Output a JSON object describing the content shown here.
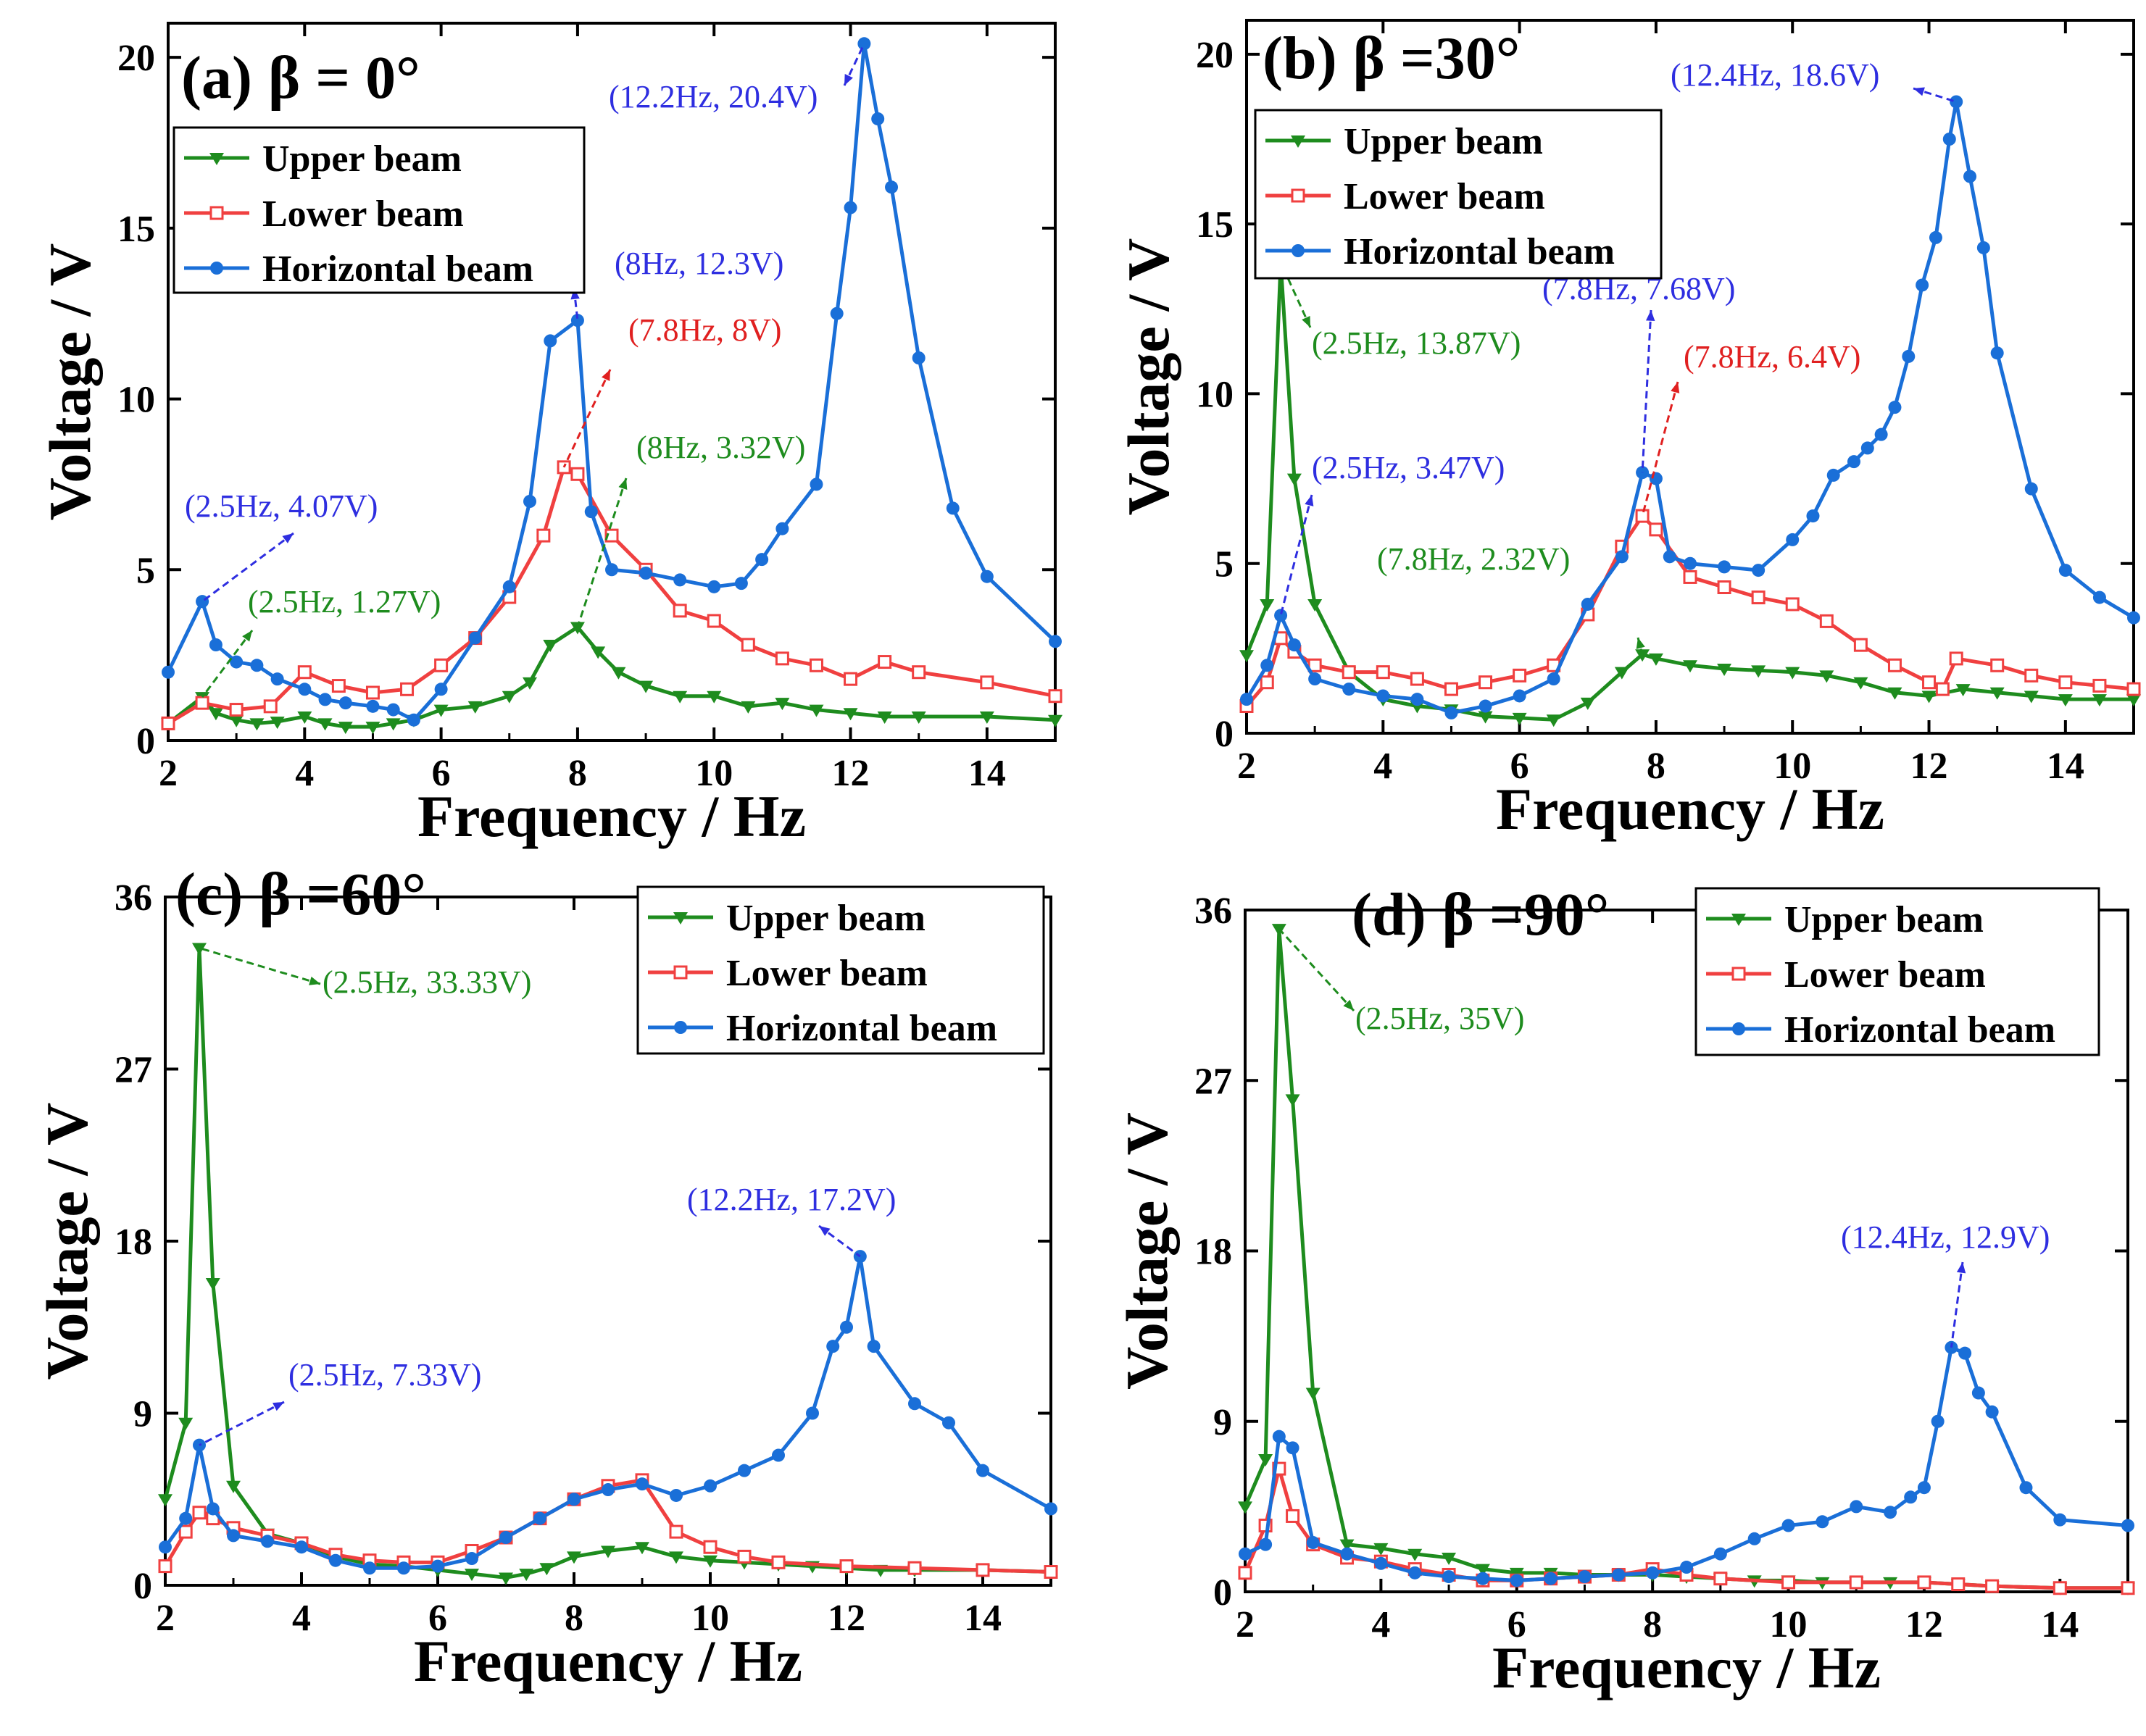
{
  "chart_data": [
    {
      "type": "line",
      "panel_label": "(a)",
      "title": "β = 0°",
      "xlabel": "Frequency / Hz",
      "ylabel": "Voltage / V",
      "xlim": [
        2,
        15
      ],
      "ylim": [
        0,
        21
      ],
      "xticks": [
        2,
        4,
        6,
        8,
        10,
        12,
        14
      ],
      "yticks": [
        0,
        5,
        10,
        15,
        20
      ],
      "legend_position": "top-left",
      "series": [
        {
          "name": "Upper beam",
          "color": "#1e8c1e",
          "marker": "triangle-down",
          "x": [
            2,
            2.5,
            2.7,
            3,
            3.3,
            3.6,
            4,
            4.3,
            4.6,
            5,
            5.3,
            5.6,
            6,
            6.5,
            7,
            7.3,
            7.6,
            8,
            8.3,
            8.6,
            9,
            9.5,
            10,
            10.5,
            11,
            11.5,
            12,
            12.5,
            13,
            14,
            15
          ],
          "y": [
            0.5,
            1.27,
            0.8,
            0.6,
            0.5,
            0.55,
            0.7,
            0.5,
            0.4,
            0.4,
            0.5,
            0.6,
            0.9,
            1.0,
            1.3,
            1.7,
            2.8,
            3.32,
            2.6,
            2.0,
            1.6,
            1.3,
            1.3,
            1.0,
            1.1,
            0.9,
            0.8,
            0.7,
            0.7,
            0.7,
            0.6
          ]
        },
        {
          "name": "Lower beam",
          "color": "#f04040",
          "marker": "square-open",
          "x": [
            2,
            2.5,
            3,
            3.5,
            4,
            4.5,
            5,
            5.5,
            6,
            6.5,
            7,
            7.5,
            7.8,
            8,
            8.5,
            9,
            9.5,
            10,
            10.5,
            11,
            11.5,
            12,
            12.5,
            13,
            14,
            15
          ],
          "y": [
            0.5,
            1.1,
            0.9,
            1.0,
            2.0,
            1.6,
            1.4,
            1.5,
            2.2,
            3.0,
            4.2,
            6.0,
            8.0,
            7.8,
            6.0,
            5.0,
            3.8,
            3.5,
            2.8,
            2.4,
            2.2,
            1.8,
            2.3,
            2.0,
            1.7,
            1.3
          ]
        },
        {
          "name": "Horizontal beam",
          "color": "#1a6fd8",
          "marker": "circle",
          "x": [
            2,
            2.5,
            2.7,
            3,
            3.3,
            3.6,
            4,
            4.3,
            4.6,
            5,
            5.3,
            5.6,
            6,
            6.5,
            7,
            7.3,
            7.6,
            8,
            8.2,
            8.5,
            9,
            9.5,
            10,
            10.4,
            10.7,
            11,
            11.5,
            11.8,
            12,
            12.2,
            12.4,
            12.6,
            13,
            13.5,
            14,
            15
          ],
          "y": [
            2.0,
            4.07,
            2.8,
            2.3,
            2.2,
            1.8,
            1.5,
            1.2,
            1.1,
            1.0,
            0.9,
            0.6,
            1.5,
            3.0,
            4.5,
            7.0,
            11.7,
            12.3,
            6.7,
            5.0,
            4.9,
            4.7,
            4.5,
            4.6,
            5.3,
            6.2,
            7.5,
            12.5,
            15.6,
            20.4,
            18.2,
            16.2,
            11.2,
            6.8,
            4.8,
            2.9
          ]
        }
      ],
      "annotations": [
        {
          "text": "(12.2Hz, 20.4V)",
          "color": "#2e2ee0",
          "point": [
            12.2,
            20.4
          ]
        },
        {
          "text": "(8Hz, 12.3V)",
          "color": "#2e2ee0",
          "point": [
            8,
            12.3
          ]
        },
        {
          "text": "(7.8Hz, 8V)",
          "color": "#e02020",
          "point": [
            7.8,
            8
          ]
        },
        {
          "text": "(8Hz, 3.32V)",
          "color": "#1e8c1e",
          "point": [
            8,
            3.32
          ]
        },
        {
          "text": "(2.5Hz, 4.07V)",
          "color": "#2e2ee0",
          "point": [
            2.5,
            4.07
          ]
        },
        {
          "text": "(2.5Hz, 1.27V)",
          "color": "#1e8c1e",
          "point": [
            2.5,
            1.27
          ]
        }
      ]
    },
    {
      "type": "line",
      "panel_label": "(b)",
      "title": "β =30°",
      "xlabel": "Frequency / Hz",
      "ylabel": "Voltage / V",
      "xlim": [
        2,
        15
      ],
      "ylim": [
        0,
        21
      ],
      "xticks": [
        2,
        4,
        6,
        8,
        10,
        12,
        14
      ],
      "yticks": [
        0,
        5,
        10,
        15,
        20
      ],
      "legend_position": "top-left",
      "series": [
        {
          "name": "Upper beam",
          "color": "#1e8c1e",
          "marker": "triangle-down",
          "x": [
            2,
            2.3,
            2.5,
            2.7,
            3,
            3.5,
            4,
            4.5,
            5,
            5.5,
            6,
            6.5,
            7,
            7.5,
            7.8,
            8,
            8.5,
            9,
            9.5,
            10,
            10.5,
            11,
            11.5,
            12,
            12.5,
            13,
            13.5,
            14,
            14.5,
            15
          ],
          "y": [
            2.3,
            3.8,
            13.87,
            7.5,
            3.8,
            1.8,
            1.0,
            0.8,
            0.7,
            0.5,
            0.45,
            0.4,
            0.9,
            1.8,
            2.32,
            2.2,
            2.0,
            1.9,
            1.85,
            1.8,
            1.7,
            1.5,
            1.2,
            1.1,
            1.3,
            1.2,
            1.1,
            1.0,
            1.0,
            1.0
          ]
        },
        {
          "name": "Lower beam",
          "color": "#f04040",
          "marker": "square-open",
          "x": [
            2,
            2.3,
            2.5,
            2.7,
            3,
            3.5,
            4,
            4.5,
            5,
            5.5,
            6,
            6.5,
            7,
            7.5,
            7.8,
            8,
            8.5,
            9,
            9.5,
            10,
            10.5,
            11,
            11.5,
            12,
            12.2,
            12.4,
            13,
            13.5,
            14,
            14.5,
            15
          ],
          "y": [
            0.8,
            1.5,
            2.8,
            2.4,
            2.0,
            1.8,
            1.8,
            1.6,
            1.3,
            1.5,
            1.7,
            2.0,
            3.5,
            5.5,
            6.4,
            6.0,
            4.6,
            4.3,
            4.0,
            3.8,
            3.3,
            2.6,
            2.0,
            1.5,
            1.3,
            2.2,
            2.0,
            1.7,
            1.5,
            1.4,
            1.3
          ]
        },
        {
          "name": "Horizontal beam",
          "color": "#1a6fd8",
          "marker": "circle",
          "x": [
            2,
            2.3,
            2.5,
            2.7,
            3,
            3.5,
            4,
            4.5,
            5,
            5.5,
            6,
            6.5,
            7,
            7.5,
            7.8,
            8,
            8.2,
            8.5,
            9,
            9.5,
            10,
            10.3,
            10.6,
            10.9,
            11.1,
            11.3,
            11.5,
            11.7,
            11.9,
            12.1,
            12.3,
            12.4,
            12.6,
            12.8,
            13,
            13.5,
            14,
            14.5,
            15
          ],
          "y": [
            1.0,
            2.0,
            3.47,
            2.6,
            1.6,
            1.3,
            1.1,
            1.0,
            0.6,
            0.8,
            1.1,
            1.6,
            3.8,
            5.2,
            7.68,
            7.5,
            5.2,
            5.0,
            4.9,
            4.8,
            5.7,
            6.4,
            7.6,
            8.0,
            8.4,
            8.8,
            9.6,
            11.1,
            13.2,
            14.6,
            17.5,
            18.6,
            16.4,
            14.3,
            11.2,
            7.2,
            4.8,
            4.0,
            3.4
          ]
        }
      ],
      "annotations": [
        {
          "text": "(12.4Hz, 18.6V)",
          "color": "#2e2ee0",
          "point": [
            12.4,
            18.6
          ]
        },
        {
          "text": "(2.5Hz, 13.87V)",
          "color": "#1e8c1e",
          "point": [
            2.5,
            13.87
          ]
        },
        {
          "text": "(7.8Hz, 7.68V)",
          "color": "#2e2ee0",
          "point": [
            7.8,
            7.68
          ]
        },
        {
          "text": "(7.8Hz, 6.4V)",
          "color": "#e02020",
          "point": [
            7.8,
            6.4
          ]
        },
        {
          "text": "(2.5Hz, 3.47V)",
          "color": "#2e2ee0",
          "point": [
            2.5,
            3.47
          ]
        },
        {
          "text": "(7.8Hz, 2.32V)",
          "color": "#1e8c1e",
          "point": [
            7.8,
            2.32
          ]
        }
      ]
    },
    {
      "type": "line",
      "panel_label": "(c)",
      "title": "β =60°",
      "xlabel": "Frequency / Hz",
      "ylabel": "Voltage / V",
      "xlim": [
        2,
        15
      ],
      "ylim": [
        0,
        36
      ],
      "xticks": [
        2,
        4,
        6,
        8,
        10,
        12,
        14
      ],
      "yticks": [
        0,
        9,
        18,
        27,
        36
      ],
      "legend_position": "top-right",
      "series": [
        {
          "name": "Upper beam",
          "color": "#1e8c1e",
          "marker": "triangle-down",
          "x": [
            2,
            2.3,
            2.5,
            2.7,
            3,
            3.5,
            4,
            4.5,
            5,
            5.5,
            6,
            6.5,
            7,
            7.3,
            7.6,
            8,
            8.5,
            9,
            9.5,
            10,
            10.5,
            11,
            11.5,
            12,
            12.5,
            13,
            14,
            15
          ],
          "y": [
            4.5,
            8.5,
            33.33,
            15.8,
            5.2,
            2.7,
            2.2,
            1.5,
            1.1,
            1.0,
            0.8,
            0.6,
            0.4,
            0.6,
            0.9,
            1.5,
            1.8,
            2.0,
            1.5,
            1.3,
            1.2,
            1.1,
            1.0,
            0.9,
            0.8,
            0.8,
            0.8,
            0.7
          ]
        },
        {
          "name": "Lower beam",
          "color": "#f04040",
          "marker": "square-open",
          "x": [
            2,
            2.3,
            2.5,
            2.7,
            3,
            3.5,
            4,
            4.5,
            5,
            5.5,
            6,
            6.5,
            7,
            7.5,
            8,
            8.5,
            9,
            9.5,
            10,
            10.5,
            11,
            12,
            13,
            14,
            15
          ],
          "y": [
            1.0,
            2.8,
            3.8,
            3.5,
            3.0,
            2.6,
            2.2,
            1.6,
            1.3,
            1.2,
            1.2,
            1.8,
            2.5,
            3.5,
            4.5,
            5.2,
            5.5,
            2.8,
            2.0,
            1.5,
            1.2,
            1.0,
            0.9,
            0.8,
            0.7
          ]
        },
        {
          "name": "Horizontal beam",
          "color": "#1a6fd8",
          "marker": "circle",
          "x": [
            2,
            2.3,
            2.5,
            2.7,
            3,
            3.5,
            4,
            4.5,
            5,
            5.5,
            6,
            6.5,
            7,
            7.5,
            8,
            8.5,
            9,
            9.5,
            10,
            10.5,
            11,
            11.5,
            11.8,
            12,
            12.2,
            12.4,
            13,
            13.5,
            14,
            15
          ],
          "y": [
            2.0,
            3.5,
            7.33,
            4.0,
            2.6,
            2.3,
            2.0,
            1.3,
            0.9,
            0.9,
            1.0,
            1.4,
            2.5,
            3.5,
            4.5,
            5.0,
            5.3,
            4.7,
            5.2,
            6.0,
            6.8,
            9.0,
            12.5,
            13.5,
            17.2,
            12.5,
            9.5,
            8.5,
            6.0,
            4.0
          ]
        }
      ],
      "annotations": [
        {
          "text": "(2.5Hz, 33.33V)",
          "color": "#1e8c1e",
          "point": [
            2.5,
            33.33
          ]
        },
        {
          "text": "(12.2Hz, 17.2V)",
          "color": "#2e2ee0",
          "point": [
            12.2,
            17.2
          ]
        },
        {
          "text": "(2.5Hz, 7.33V)",
          "color": "#2e2ee0",
          "point": [
            2.5,
            7.33
          ]
        }
      ]
    },
    {
      "type": "line",
      "panel_label": "(d)",
      "title": "β =90°",
      "xlabel": "Frequency / Hz",
      "ylabel": "Voltage / V",
      "xlim": [
        2,
        15
      ],
      "ylim": [
        0,
        36
      ],
      "xticks": [
        2,
        4,
        6,
        8,
        10,
        12,
        14
      ],
      "yticks": [
        0,
        9,
        18,
        27,
        36
      ],
      "legend_position": "top-right",
      "series": [
        {
          "name": "Upper beam",
          "color": "#1e8c1e",
          "marker": "triangle-down",
          "x": [
            2,
            2.3,
            2.5,
            2.7,
            3,
            3.5,
            4,
            4.5,
            5,
            5.5,
            6,
            6.5,
            7,
            7.5,
            8,
            8.5,
            9,
            9.5,
            10,
            10.5,
            11,
            11.5,
            12,
            12.5,
            13,
            14,
            15
          ],
          "y": [
            4.5,
            7.0,
            35.0,
            26.0,
            10.5,
            2.5,
            2.3,
            2.0,
            1.8,
            1.2,
            1.0,
            1.0,
            0.9,
            0.9,
            0.9,
            0.8,
            0.7,
            0.6,
            0.6,
            0.5,
            0.5,
            0.5,
            0.5,
            0.4,
            0.3,
            0.2,
            0.2
          ]
        },
        {
          "name": "Lower beam",
          "color": "#f04040",
          "marker": "square-open",
          "x": [
            2,
            2.3,
            2.5,
            2.7,
            3,
            3.5,
            4,
            4.5,
            5,
            5.5,
            6,
            6.5,
            7,
            7.5,
            8,
            8.5,
            9,
            10,
            11,
            12,
            12.5,
            13,
            14,
            15
          ],
          "y": [
            1.0,
            3.5,
            6.5,
            4.0,
            2.5,
            1.8,
            1.6,
            1.2,
            0.9,
            0.6,
            0.6,
            0.7,
            0.8,
            0.9,
            1.2,
            0.9,
            0.7,
            0.5,
            0.5,
            0.5,
            0.4,
            0.3,
            0.2,
            0.2
          ]
        },
        {
          "name": "Horizontal beam",
          "color": "#1a6fd8",
          "marker": "circle",
          "x": [
            2,
            2.3,
            2.5,
            2.7,
            3,
            3.5,
            4,
            4.5,
            5,
            5.5,
            6,
            6.5,
            7,
            7.5,
            8,
            8.5,
            9,
            9.5,
            10,
            10.5,
            11,
            11.5,
            11.8,
            12,
            12.2,
            12.4,
            12.6,
            12.8,
            13,
            13.5,
            14,
            15
          ],
          "y": [
            2.0,
            2.5,
            8.2,
            7.6,
            2.6,
            2.0,
            1.5,
            1.0,
            0.8,
            0.7,
            0.6,
            0.7,
            0.8,
            0.9,
            1.0,
            1.3,
            2.0,
            2.8,
            3.5,
            3.7,
            4.5,
            4.2,
            5.0,
            5.5,
            9.0,
            12.9,
            12.6,
            10.5,
            9.5,
            5.5,
            3.8,
            3.5
          ]
        }
      ],
      "annotations": [
        {
          "text": "(2.5Hz, 35V)",
          "color": "#1e8c1e",
          "point": [
            2.5,
            35
          ]
        },
        {
          "text": "(12.4Hz, 12.9V)",
          "color": "#2e2ee0",
          "point": [
            12.4,
            12.9
          ]
        }
      ]
    }
  ]
}
